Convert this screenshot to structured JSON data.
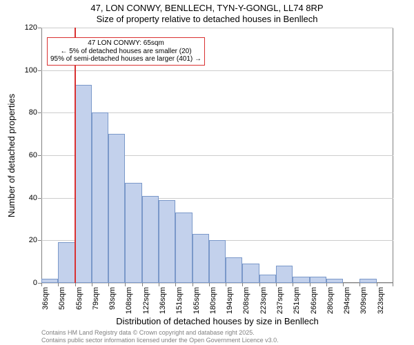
{
  "title": "47, LON CONWY, BENLLECH, TYN-Y-GONGL, LL74 8RP",
  "subtitle": "Size of property relative to detached houses in Benllech",
  "y_axis_label": "Number of detached properties",
  "x_axis_label": "Distribution of detached houses by size in Benllech",
  "footer_line1": "Contains HM Land Registry data © Crown copyright and database right 2025.",
  "footer_line2": "Contains public sector information licensed under the Open Government Licence v3.0.",
  "chart": {
    "type": "histogram",
    "y_max": 120,
    "y_ticks": [
      0,
      20,
      40,
      60,
      80,
      100,
      120
    ],
    "x_tick_labels": [
      "36sqm",
      "50sqm",
      "65sqm",
      "79sqm",
      "93sqm",
      "108sqm",
      "122sqm",
      "136sqm",
      "151sqm",
      "165sqm",
      "180sqm",
      "194sqm",
      "208sqm",
      "223sqm",
      "237sqm",
      "251sqm",
      "266sqm",
      "280sqm",
      "294sqm",
      "309sqm",
      "323sqm"
    ],
    "values": [
      2,
      19,
      93,
      80,
      70,
      47,
      41,
      39,
      33,
      23,
      20,
      12,
      9,
      4,
      8,
      3,
      3,
      2,
      0,
      2,
      0
    ],
    "bar_fill": "#c3d1ec",
    "bar_stroke": "#7a98c9",
    "grid_color": "#cccccc",
    "axis_color": "#808080",
    "background": "#ffffff",
    "marker_color": "#d93030",
    "marker_bin_index": 2,
    "annotation": {
      "line1": "47 LON CONWY: 65sqm",
      "line2": "← 5% of detached houses are smaller (20)",
      "line3": "95% of semi-detached houses are larger (401) →"
    }
  }
}
